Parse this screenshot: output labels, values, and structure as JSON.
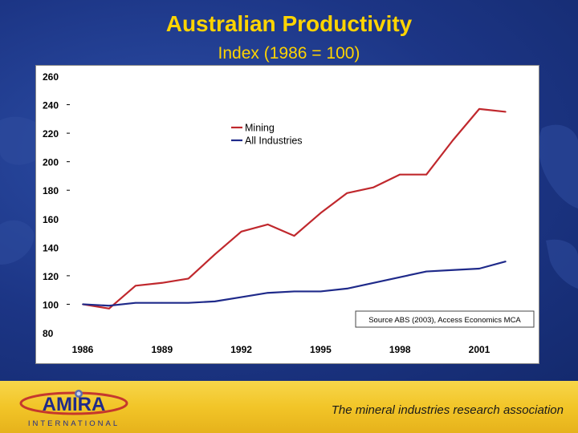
{
  "slide": {
    "title": "Australian Productivity",
    "subtitle": "Index (1986 = 100)"
  },
  "footer": {
    "logo_text": "AMIRA",
    "logo_subtext": "INTERNATIONAL",
    "tagline": "The mineral industries research association"
  },
  "colors": {
    "title": "#ffd400",
    "mining": "#c0282d",
    "all_industries": "#1f2a8a"
  },
  "chart_data": {
    "type": "line",
    "title": "Australian Productivity",
    "subtitle": "Index (1986 = 100)",
    "xlabel": "",
    "ylabel": "",
    "x": [
      1986,
      1987,
      1988,
      1989,
      1990,
      1991,
      1992,
      1993,
      1994,
      1995,
      1996,
      1997,
      1998,
      1999,
      2000,
      2001,
      2002
    ],
    "x_ticks": [
      "1986",
      "1989",
      "1992",
      "1995",
      "1998",
      "2001"
    ],
    "y_ticks": [
      "260",
      "240",
      "220",
      "200",
      "180",
      "160",
      "140",
      "120",
      "100",
      "80"
    ],
    "ylim": [
      80,
      260
    ],
    "legend_position": "top-center",
    "source_note": "Source ABS (2003), Access Economics MCA",
    "series": [
      {
        "name": "Mining",
        "color": "#c0282d",
        "values": [
          100,
          97,
          113,
          115,
          118,
          135,
          151,
          156,
          148,
          164,
          178,
          182,
          191,
          191,
          215,
          237,
          235
        ]
      },
      {
        "name": "All Industries",
        "color": "#1f2a8a",
        "values": [
          100,
          99,
          101,
          101,
          101,
          102,
          105,
          108,
          109,
          109,
          111,
          115,
          119,
          123,
          124,
          125,
          130
        ]
      }
    ]
  }
}
